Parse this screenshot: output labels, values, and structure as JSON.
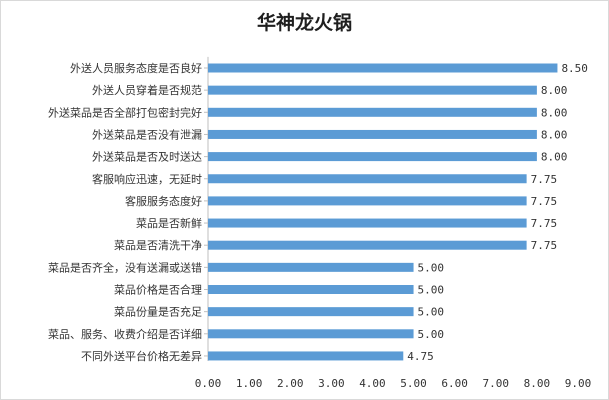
{
  "chart_data": {
    "type": "bar",
    "orientation": "horizontal",
    "title": "华神龙火锅",
    "categories": [
      "外送人员服务态度是否良好",
      "外送人员穿着是否规范",
      "外送菜品是否全部打包密封完好",
      "外送菜品是否没有泄漏",
      "外送菜品是否及时送达",
      "客服响应迅速，无延时",
      "客服服务态度好",
      "菜品是否新鲜",
      "菜品是否清洗干净",
      "菜品是否齐全，没有送漏或送错",
      "菜品价格是否合理",
      "菜品份量是否充足",
      "菜品、服务、收费介绍是否详细",
      "不同外送平台价格无差异"
    ],
    "values": [
      8.5,
      8.0,
      8.0,
      8.0,
      8.0,
      7.75,
      7.75,
      7.75,
      7.75,
      5.0,
      5.0,
      5.0,
      5.0,
      4.75
    ],
    "value_labels": [
      "8.50",
      "8.00",
      "8.00",
      "8.00",
      "8.00",
      "7.75",
      "7.75",
      "7.75",
      "7.75",
      "5.00",
      "5.00",
      "5.00",
      "5.00",
      "4.75"
    ],
    "xlim": [
      0,
      9
    ],
    "xticks": [
      "0.00",
      "1.00",
      "2.00",
      "3.00",
      "4.00",
      "5.00",
      "6.00",
      "7.00",
      "8.00",
      "9.00"
    ],
    "xlabel": "",
    "ylabel": "",
    "grid": false,
    "legend": "none",
    "bar_color": "#5b9bd5"
  }
}
